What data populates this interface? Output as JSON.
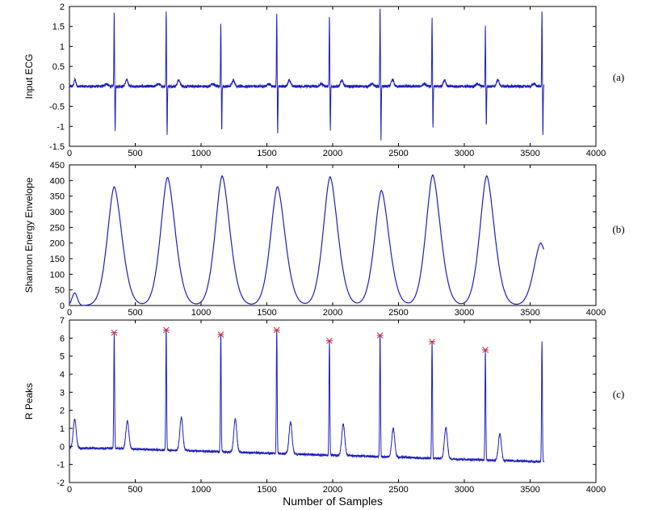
{
  "chart_data": [
    {
      "type": "line",
      "panel_label": "(a)",
      "ylabel": "Input ECG",
      "xlabel": "",
      "xlim": [
        0,
        4000
      ],
      "ylim": [
        -1.5,
        2
      ],
      "xticks": [
        0,
        500,
        1000,
        1500,
        2000,
        2500,
        3000,
        3500,
        4000
      ],
      "yticks": [
        -1.5,
        -1,
        -0.5,
        0,
        0.5,
        1,
        1.5,
        2
      ],
      "ytick_labels": [
        "-1.5",
        "-1",
        "-0.5",
        "0",
        "0.5",
        "1",
        "1.5",
        "2"
      ],
      "color": "#1f1fbf",
      "beats": [
        {
          "x": 340,
          "peak": 1.85,
          "trough": -1.15
        },
        {
          "x": 735,
          "peak": 1.85,
          "trough": -1.2
        },
        {
          "x": 1150,
          "peak": 1.6,
          "trough": -1.1
        },
        {
          "x": 1575,
          "peak": 1.85,
          "trough": -1.2
        },
        {
          "x": 1975,
          "peak": 1.75,
          "trough": -1.1
        },
        {
          "x": 2360,
          "peak": 1.95,
          "trough": -1.35
        },
        {
          "x": 2755,
          "peak": 1.7,
          "trough": -1.05
        },
        {
          "x": 3160,
          "peak": 1.5,
          "trough": -1.0
        },
        {
          "x": 3590,
          "peak": 1.85,
          "trough": -1.2
        }
      ]
    },
    {
      "type": "line",
      "panel_label": "(b)",
      "ylabel": "Shannon Energy Envelope",
      "xlabel": "",
      "xlim": [
        0,
        4000
      ],
      "ylim": [
        0,
        450
      ],
      "xticks": [
        0,
        500,
        1000,
        1500,
        2000,
        2500,
        3000,
        3500,
        4000
      ],
      "yticks": [
        0,
        50,
        100,
        150,
        200,
        250,
        300,
        350,
        400,
        450
      ],
      "ytick_labels": [
        "0",
        "50",
        "100",
        "150",
        "200",
        "250",
        "300",
        "350",
        "400",
        "450"
      ],
      "color": "#1f1fbf",
      "peaks": [
        {
          "x": 340,
          "y": 380
        },
        {
          "x": 745,
          "y": 410
        },
        {
          "x": 1160,
          "y": 415
        },
        {
          "x": 1580,
          "y": 380
        },
        {
          "x": 1980,
          "y": 412
        },
        {
          "x": 2370,
          "y": 368
        },
        {
          "x": 2760,
          "y": 418
        },
        {
          "x": 3170,
          "y": 415
        },
        {
          "x": 3580,
          "y": 200
        }
      ],
      "start_bump": {
        "x": 40,
        "y": 40
      }
    },
    {
      "type": "line",
      "panel_label": "(c)",
      "ylabel": "R Peaks",
      "xlabel": "Number of Samples",
      "xlim": [
        0,
        4000
      ],
      "ylim": [
        -2,
        7
      ],
      "xticks": [
        0,
        500,
        1000,
        1500,
        2000,
        2500,
        3000,
        3500,
        4000
      ],
      "yticks": [
        -2,
        -1,
        0,
        1,
        2,
        3,
        4,
        5,
        6,
        7
      ],
      "ytick_labels": [
        "-2",
        "-1",
        "0",
        "1",
        "2",
        "3",
        "4",
        "5",
        "6",
        "7"
      ],
      "color": "#1f1fbf",
      "marker_color": "#cc3344",
      "r_peaks": [
        {
          "x": 340,
          "y": 6.3
        },
        {
          "x": 735,
          "y": 6.45
        },
        {
          "x": 1150,
          "y": 6.2
        },
        {
          "x": 1575,
          "y": 6.45
        },
        {
          "x": 1975,
          "y": 5.85
        },
        {
          "x": 2360,
          "y": 6.15
        },
        {
          "x": 2755,
          "y": 5.8
        },
        {
          "x": 3160,
          "y": 5.35
        }
      ],
      "t_waves": [
        {
          "x": 40,
          "y": 1.5
        },
        {
          "x": 440,
          "y": 1.4
        },
        {
          "x": 850,
          "y": 1.6
        },
        {
          "x": 1260,
          "y": 1.5
        },
        {
          "x": 1680,
          "y": 1.35
        },
        {
          "x": 2080,
          "y": 1.25
        },
        {
          "x": 2460,
          "y": 1.0
        },
        {
          "x": 2860,
          "y": 1.05
        },
        {
          "x": 3270,
          "y": 0.7
        }
      ],
      "end_spike": {
        "x": 3590,
        "y": 5.85
      }
    }
  ]
}
